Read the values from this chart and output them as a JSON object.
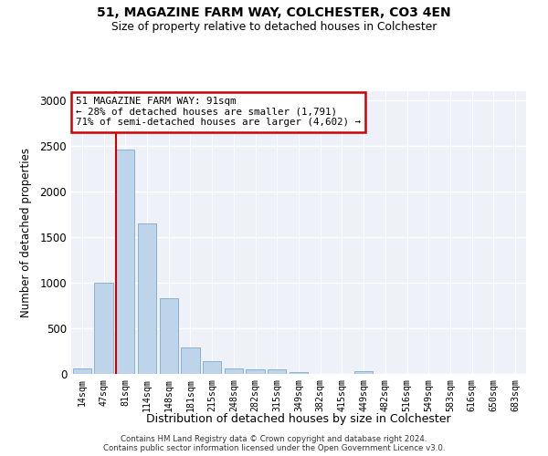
{
  "title1": "51, MAGAZINE FARM WAY, COLCHESTER, CO3 4EN",
  "title2": "Size of property relative to detached houses in Colchester",
  "xlabel": "Distribution of detached houses by size in Colchester",
  "ylabel": "Number of detached properties",
  "categories": [
    "14sqm",
    "47sqm",
    "81sqm",
    "114sqm",
    "148sqm",
    "181sqm",
    "215sqm",
    "248sqm",
    "282sqm",
    "315sqm",
    "349sqm",
    "382sqm",
    "415sqm",
    "449sqm",
    "482sqm",
    "516sqm",
    "549sqm",
    "583sqm",
    "616sqm",
    "650sqm",
    "683sqm"
  ],
  "values": [
    60,
    1000,
    2460,
    1650,
    830,
    290,
    140,
    60,
    55,
    55,
    25,
    5,
    5,
    30,
    5,
    0,
    0,
    0,
    0,
    0,
    0
  ],
  "bar_color": "#bdd4ea",
  "bar_edge_color": "#7fa8cc",
  "vline_color": "#cc0000",
  "annotation_text": "51 MAGAZINE FARM WAY: 91sqm\n← 28% of detached houses are smaller (1,791)\n71% of semi-detached houses are larger (4,602) →",
  "annotation_box_color": "#ffffff",
  "annotation_box_edge": "#cc0000",
  "ylim": [
    0,
    3100
  ],
  "yticks": [
    0,
    500,
    1000,
    1500,
    2000,
    2500,
    3000
  ],
  "bg_color": "#eef2f8",
  "footnote1": "Contains HM Land Registry data © Crown copyright and database right 2024.",
  "footnote2": "Contains public sector information licensed under the Open Government Licence v3.0."
}
